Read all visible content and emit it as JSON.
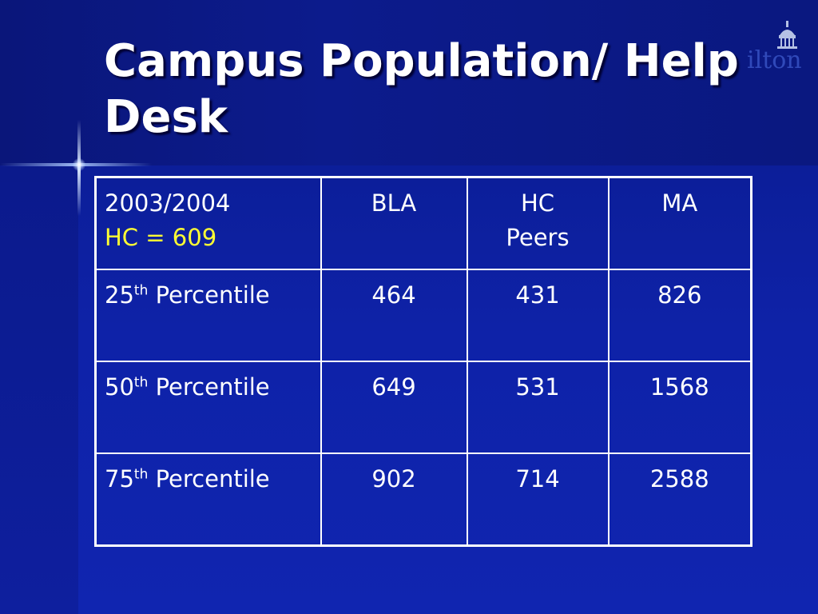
{
  "slide": {
    "title": "Campus Population/ Help Desk",
    "logo_text": "ilton"
  },
  "table": {
    "header": {
      "year": "2003/2004",
      "hc_count": "HC = 609",
      "columns": [
        "BLA",
        "HC Peers",
        "MA"
      ],
      "hc_peers_line1": "HC",
      "hc_peers_line2": "Peers"
    },
    "rows": [
      {
        "ordinal": "25",
        "suffix": "th",
        "label": " Percentile",
        "values": [
          "464",
          "431",
          "826"
        ]
      },
      {
        "ordinal": "50",
        "suffix": "th",
        "label": " Percentile",
        "values": [
          "649",
          "531",
          "1568"
        ]
      },
      {
        "ordinal": "75",
        "suffix": "th",
        "label": " Percentile",
        "values": [
          "902",
          "714",
          "2588"
        ]
      }
    ]
  },
  "colors": {
    "background": "#0d1fa0",
    "text": "#ffffff",
    "highlight": "#ffff33"
  },
  "icons": [
    "building-dome-icon"
  ]
}
